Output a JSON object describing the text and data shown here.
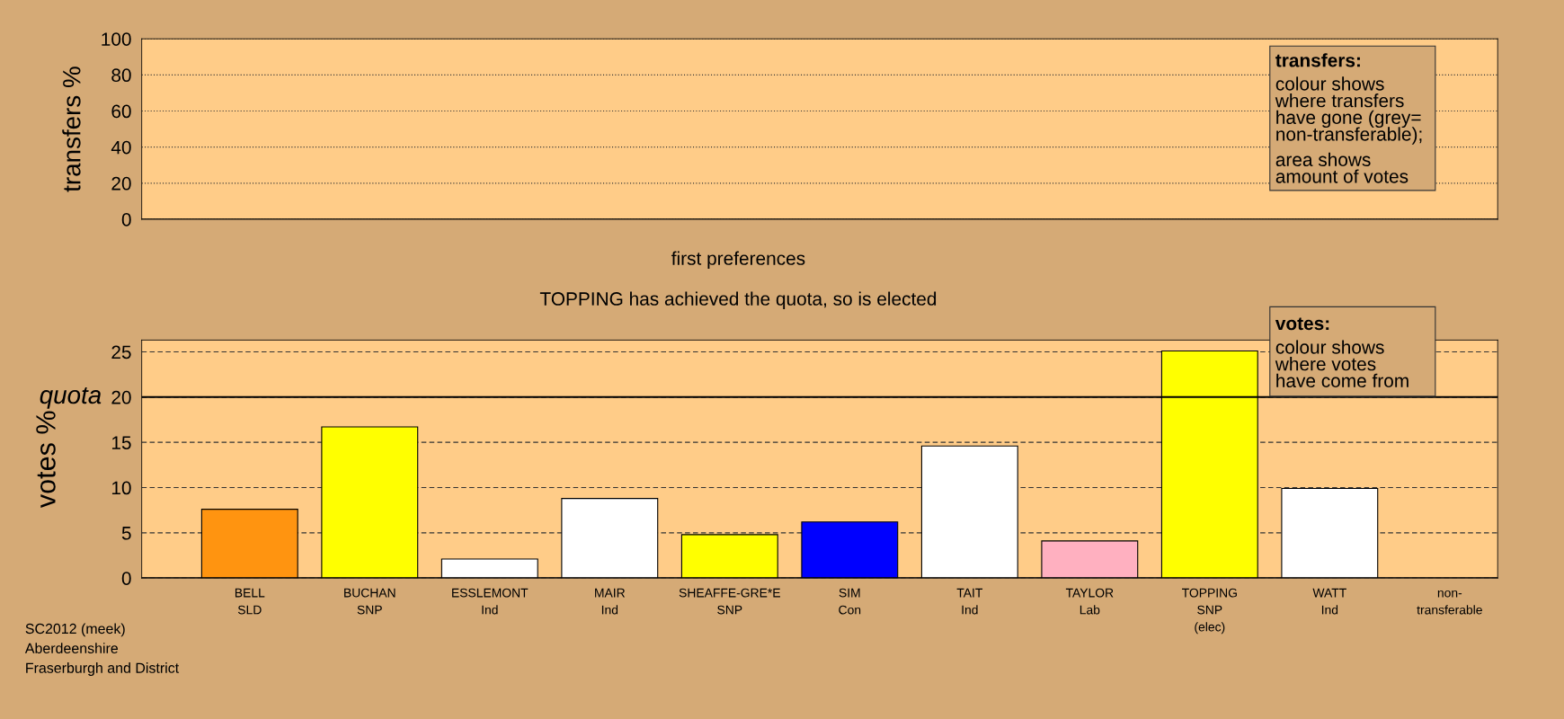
{
  "chart_data": [
    {
      "type": "bar",
      "ylabel": "transfers %",
      "categories": [
        null,
        null,
        null,
        null,
        null,
        null,
        null,
        null,
        null,
        null,
        null
      ],
      "values": [
        null,
        null,
        null,
        null,
        null,
        null,
        null,
        null,
        null,
        null,
        null
      ],
      "ylim": [
        0,
        100
      ],
      "yticks": [
        0,
        20,
        40,
        60,
        80,
        100
      ],
      "grid": "y",
      "tick_labels": "y",
      "annotations": [
        "transfers:",
        "colour shows\nwhere transfers\nhave gone (grey=\nnon-transferable);",
        "area shows\namount of votes"
      ]
    },
    {
      "type": "bar",
      "title": "first preferences",
      "subtitle": "TOPPING has achieved the quota, so is elected",
      "ylabel": "votes %",
      "categories": [
        "BELL\nSLD",
        "BUCHAN\nSNP",
        "ESSLEMONT\nInd",
        "MAIR\nInd",
        "SHEAFFE-GRE*E\nSNP",
        "SIM\nCon",
        "TAIT\nInd",
        "TAYLOR\nLab",
        "TOPPING\nSNP\n(elec)",
        "WATT\nInd",
        "non-\ntransferable"
      ],
      "values": [
        7.6,
        16.7,
        2.1,
        8.8,
        4.8,
        6.2,
        14.6,
        4.1,
        25.1,
        9.9,
        null
      ],
      "colors": [
        "#ff9410",
        "#ffff00",
        "#ffffff",
        "#ffffff",
        "#ffff00",
        "#0000ff",
        "#ffffff",
        "#ffb0c0",
        "#ffff00",
        "#ffffff",
        "#c0c0c0"
      ],
      "ylim": [
        0,
        26.3
      ],
      "yticks": [
        0,
        5,
        10,
        15,
        20,
        25
      ],
      "grid": "y",
      "ref_lines": [
        {
          "axis": "y",
          "value": 20,
          "label": "quota"
        }
      ],
      "annotations": [
        "votes:",
        "colour shows\nwhere votes\nhave come from",
        "SC2012 (meek)\nAberdeenshire\nFraserburgh and District"
      ]
    }
  ]
}
